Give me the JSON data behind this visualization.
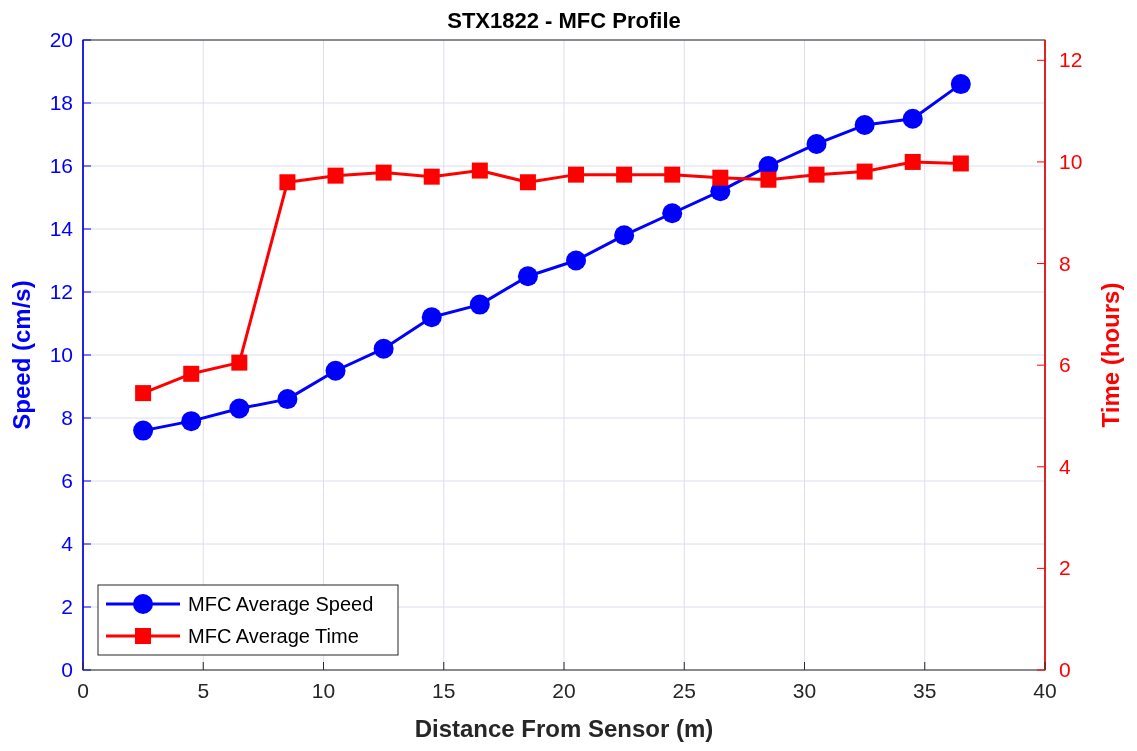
{
  "chart_data": {
    "type": "line",
    "title": "STX1822 - MFC Profile",
    "xlabel": "Distance From Sensor (m)",
    "ylabel": "Speed (cm/s)",
    "y2label": "Time (hours)",
    "x": [
      2.5,
      4.5,
      6.5,
      8.5,
      10.5,
      12.5,
      14.5,
      16.5,
      18.5,
      20.5,
      22.5,
      24.5,
      26.5,
      28.5,
      30.5,
      32.5,
      34.5,
      36.5
    ],
    "series": [
      {
        "name": "MFC Average Speed",
        "color": "#0000ff",
        "marker": "circle",
        "values": [
          7.6,
          7.9,
          8.3,
          8.6,
          9.5,
          10.2,
          11.2,
          11.6,
          12.5,
          13.0,
          13.8,
          14.5,
          15.2,
          16.0,
          16.7,
          17.3,
          17.5,
          18.6
        ]
      },
      {
        "name": "MFC Average Time",
        "color": "#ff0000",
        "marker": "square",
        "axis": "y2",
        "values": [
          5.45,
          5.83,
          6.05,
          9.6,
          9.73,
          9.79,
          9.71,
          9.83,
          9.6,
          9.75,
          9.75,
          9.75,
          9.69,
          9.65,
          9.75,
          9.81,
          10.0,
          9.97
        ]
      }
    ],
    "xlim": [
      0,
      40
    ],
    "xticks": [
      0,
      5,
      10,
      15,
      20,
      25,
      30,
      35,
      40
    ],
    "ylim": [
      0,
      20
    ],
    "yticks": [
      0,
      2,
      4,
      6,
      8,
      10,
      12,
      14,
      16,
      18,
      20
    ],
    "y2lim": [
      0,
      12.4
    ],
    "y2ticks": [
      0,
      2,
      4,
      6,
      8,
      10,
      12
    ],
    "grid": true,
    "legend": "bottom left",
    "line_style": "solid"
  }
}
